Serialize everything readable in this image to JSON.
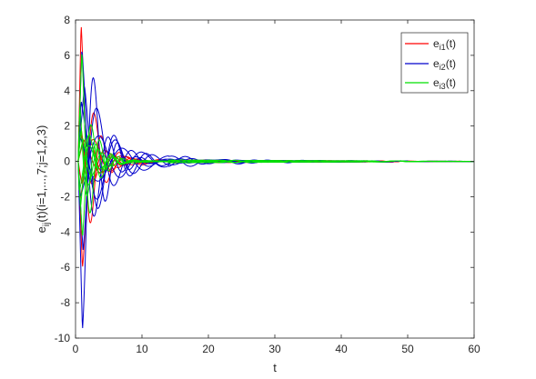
{
  "chart_data": {
    "type": "line",
    "title": "",
    "xlabel": "t",
    "ylabel": "e_ij(t)(i=1,...,7;j=1,2,3)",
    "ylabel_parts": [
      "e",
      "ij",
      "(t)(i=1,...,7;j=1,2,3)"
    ],
    "xlim": [
      0,
      60
    ],
    "ylim": [
      -10,
      8
    ],
    "xticks": [
      0,
      10,
      20,
      30,
      40,
      50,
      60
    ],
    "yticks": [
      -10,
      -8,
      -6,
      -4,
      -2,
      0,
      2,
      4,
      6,
      8
    ],
    "grid": false,
    "legend_position": "top-right",
    "series": [
      {
        "name": "e_i1(t)",
        "label_main": "e",
        "label_sub": "i1",
        "label_tail": "(t)",
        "color": "#ff0000",
        "curves": [
          {
            "peak": 8.0,
            "start": 0.8,
            "period": 3.2,
            "decay": 0.55,
            "phase": 0.3
          },
          {
            "peak": -6.2,
            "start": 1.0,
            "period": 3.8,
            "decay": 0.45,
            "phase": 0.0
          },
          {
            "peak": 2.6,
            "start": 0.5,
            "period": 4.5,
            "decay": 0.35,
            "phase": 0.8
          },
          {
            "peak": -2.4,
            "start": 0.6,
            "period": 5.0,
            "decay": 0.3,
            "phase": 1.4
          },
          {
            "peak": 1.8,
            "start": 0.7,
            "period": 4.0,
            "decay": 0.28,
            "phase": 2.0
          },
          {
            "peak": -1.6,
            "start": 0.9,
            "period": 3.5,
            "decay": 0.32,
            "phase": 2.6
          },
          {
            "peak": 1.2,
            "start": 1.2,
            "period": 6.0,
            "decay": 0.22,
            "phase": 0.5
          }
        ]
      },
      {
        "name": "e_i2(t)",
        "label_main": "e",
        "label_sub": "i2",
        "label_tail": "(t)",
        "color": "#0000cc",
        "curves": [
          {
            "peak": -9.8,
            "start": 1.0,
            "period": 3.6,
            "decay": 0.42,
            "phase": 0.0
          },
          {
            "peak": 6.5,
            "start": 0.9,
            "period": 4.2,
            "decay": 0.38,
            "phase": 0.4
          },
          {
            "peak": 4.5,
            "start": 1.3,
            "period": 4.8,
            "decay": 0.25,
            "phase": 1.2
          },
          {
            "peak": -5.8,
            "start": 1.1,
            "period": 5.2,
            "decay": 0.3,
            "phase": 2.1
          },
          {
            "peak": 3.5,
            "start": 0.8,
            "period": 5.5,
            "decay": 0.2,
            "phase": 0.9
          },
          {
            "peak": -2.2,
            "start": 0.7,
            "period": 6.5,
            "decay": 0.15,
            "phase": 1.7
          },
          {
            "peak": 1.6,
            "start": 0.6,
            "period": 7.0,
            "decay": 0.12,
            "phase": 2.4
          }
        ]
      },
      {
        "name": "e_i3(t)",
        "label_main": "e",
        "label_sub": "i3",
        "label_tail": "(t)",
        "color": "#00e000",
        "curves": [
          {
            "peak": 6.4,
            "start": 0.9,
            "period": 2.8,
            "decay": 0.6,
            "phase": 0.2
          },
          {
            "peak": -4.5,
            "start": 1.0,
            "period": 3.0,
            "decay": 0.55,
            "phase": 0.6
          },
          {
            "peak": 3.4,
            "start": 0.6,
            "period": 2.6,
            "decay": 0.5,
            "phase": 1.1
          },
          {
            "peak": -3.0,
            "start": 0.7,
            "period": 3.3,
            "decay": 0.48,
            "phase": 1.8
          },
          {
            "peak": 2.2,
            "start": 0.8,
            "period": 2.9,
            "decay": 0.45,
            "phase": 2.5
          },
          {
            "peak": -1.8,
            "start": 0.5,
            "period": 3.4,
            "decay": 0.42,
            "phase": 0.4
          },
          {
            "peak": 1.4,
            "start": 1.1,
            "period": 3.1,
            "decay": 0.4,
            "phase": 1.5
          }
        ]
      }
    ]
  }
}
